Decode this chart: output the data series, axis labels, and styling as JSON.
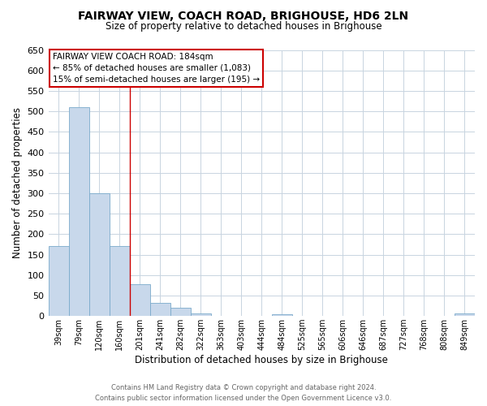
{
  "title": "FAIRWAY VIEW, COACH ROAD, BRIGHOUSE, HD6 2LN",
  "subtitle": "Size of property relative to detached houses in Brighouse",
  "xlabel": "Distribution of detached houses by size in Brighouse",
  "ylabel": "Number of detached properties",
  "bar_color": "#c8d8eb",
  "bar_edge_color": "#7aaacb",
  "categories": [
    "39sqm",
    "79sqm",
    "120sqm",
    "160sqm",
    "201sqm",
    "241sqm",
    "282sqm",
    "322sqm",
    "363sqm",
    "403sqm",
    "444sqm",
    "484sqm",
    "525sqm",
    "565sqm",
    "606sqm",
    "646sqm",
    "687sqm",
    "727sqm",
    "768sqm",
    "808sqm",
    "849sqm"
  ],
  "values": [
    170,
    510,
    300,
    170,
    78,
    32,
    20,
    7,
    0,
    0,
    0,
    5,
    0,
    0,
    0,
    0,
    0,
    0,
    0,
    0,
    7
  ],
  "ylim": [
    0,
    650
  ],
  "yticks": [
    0,
    50,
    100,
    150,
    200,
    250,
    300,
    350,
    400,
    450,
    500,
    550,
    600,
    650
  ],
  "annotation_title": "FAIRWAY VIEW COACH ROAD: 184sqm",
  "annotation_line1": "← 85% of detached houses are smaller (1,083)",
  "annotation_line2": "15% of semi-detached houses are larger (195) →",
  "annotation_box_color": "#ffffff",
  "annotation_box_edge_color": "#cc0000",
  "property_line_x": 3.5,
  "footer_line1": "Contains HM Land Registry data © Crown copyright and database right 2024.",
  "footer_line2": "Contains public sector information licensed under the Open Government Licence v3.0.",
  "background_color": "#ffffff",
  "grid_color": "#c8d4e0"
}
